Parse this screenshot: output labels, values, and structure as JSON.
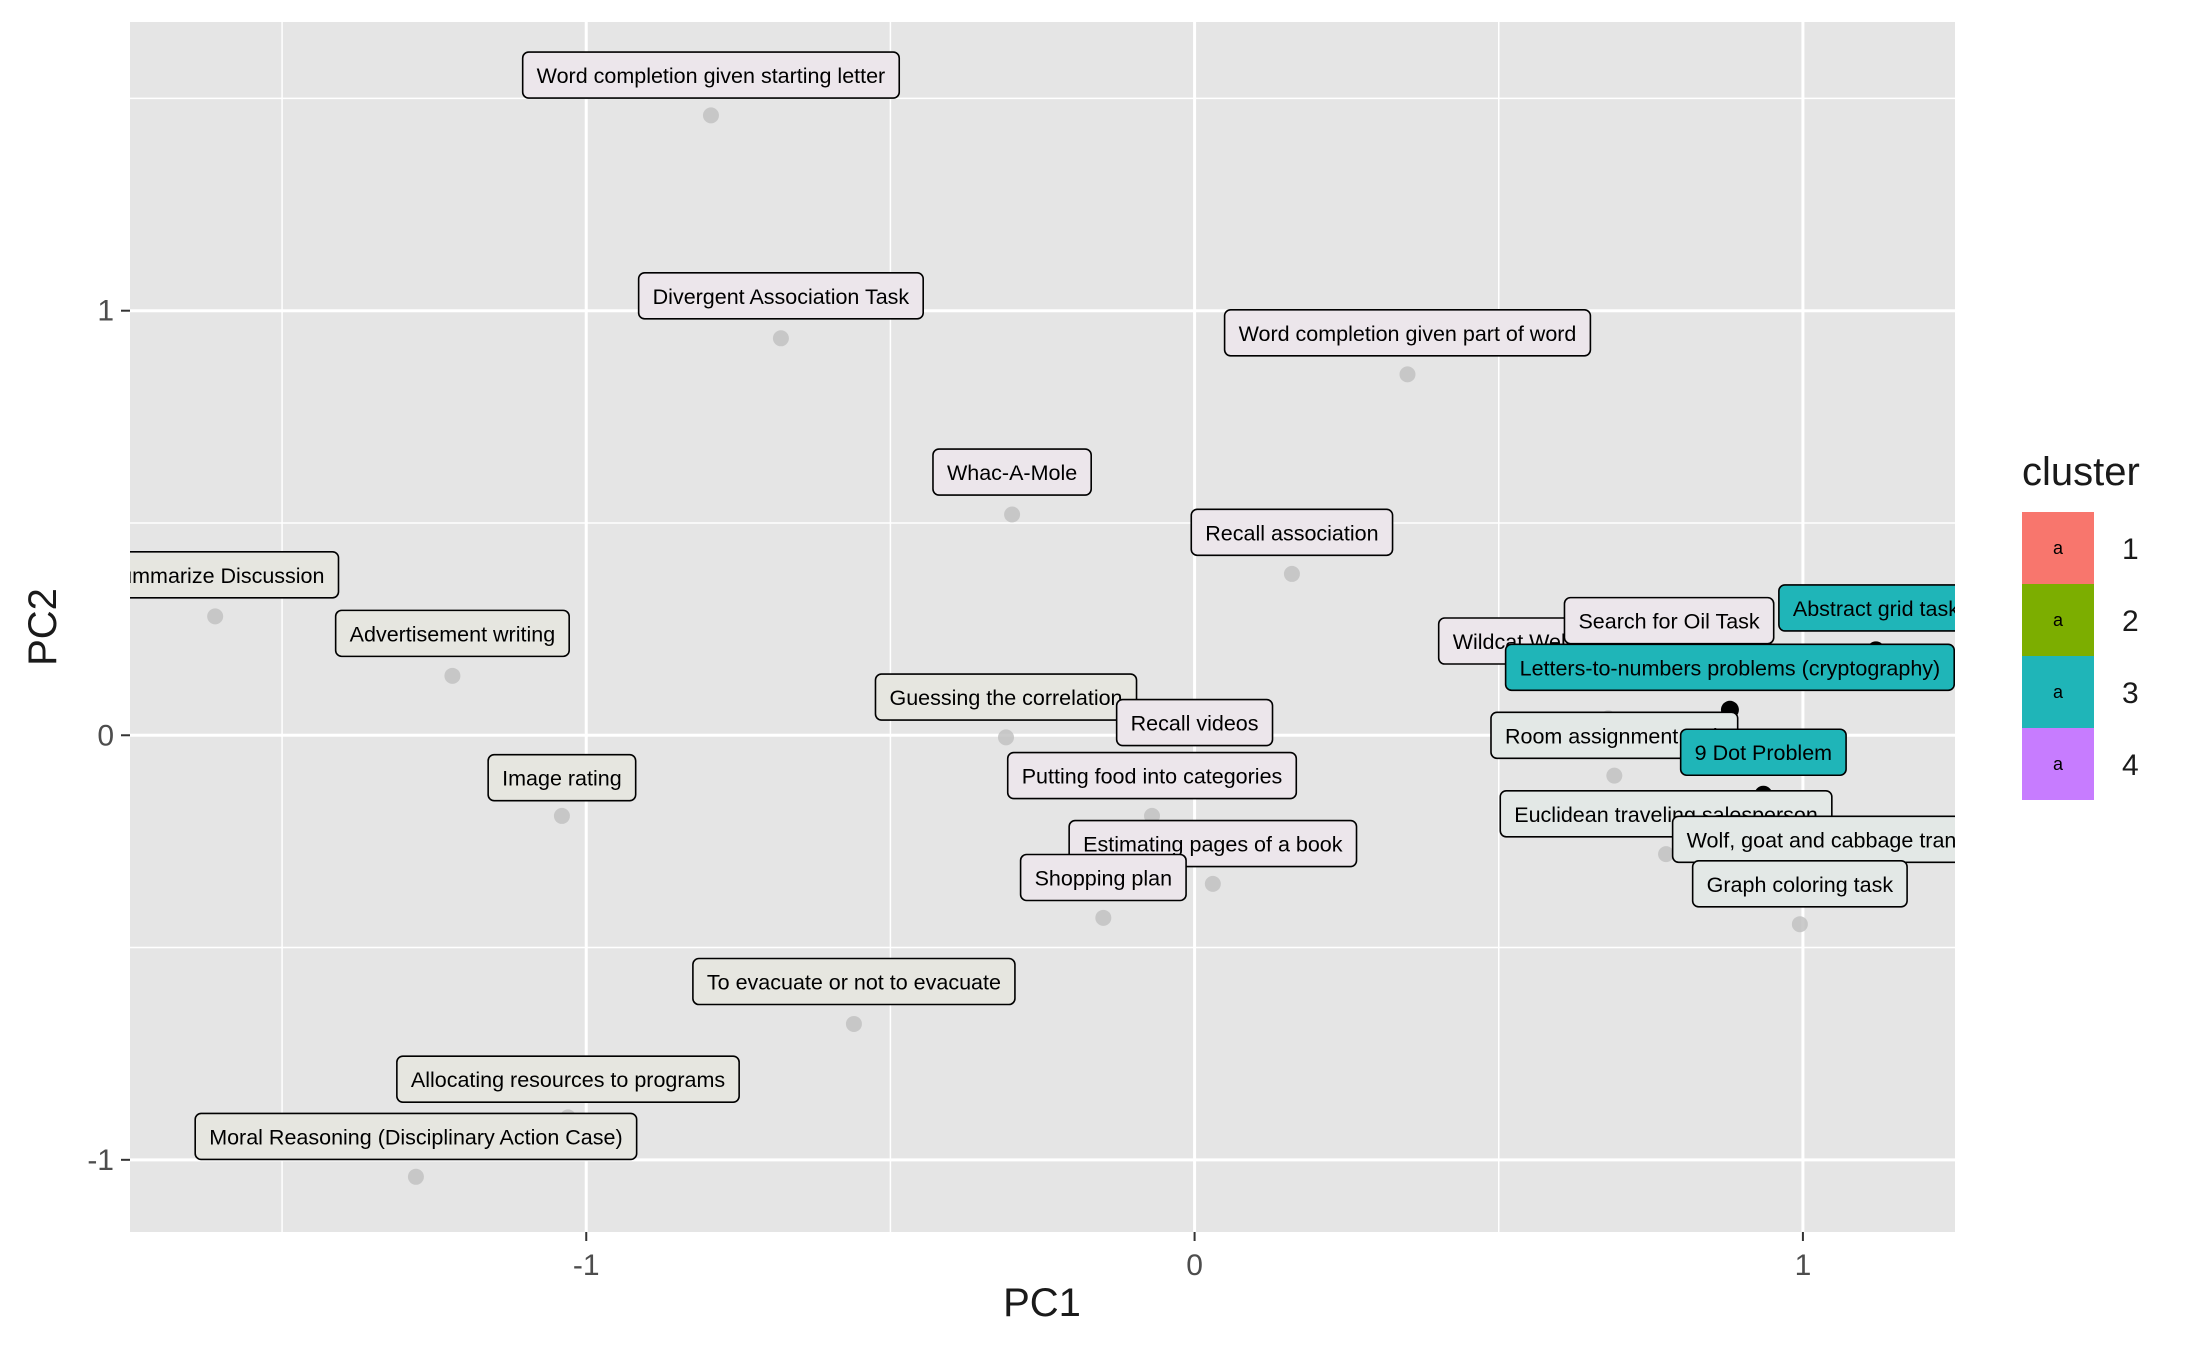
{
  "chart_data": {
    "type": "scatter",
    "title": "",
    "xlabel": "PC1",
    "ylabel": "PC2",
    "xlim": [
      -1.75,
      1.25
    ],
    "ylim": [
      -1.17,
      1.68
    ],
    "x_ticks": [
      -1,
      0,
      1
    ],
    "y_ticks": [
      -1,
      0,
      1
    ],
    "x_tick_labels": [
      "-1",
      "0",
      "1"
    ],
    "y_tick_labels": [
      "-1",
      "0",
      "1"
    ],
    "grid": true,
    "panel_background": "#e5e5e5",
    "legend": {
      "title": "cluster",
      "placement": "right",
      "key_glyph": "a",
      "entries": [
        {
          "label": "1",
          "color": "#f8766d"
        },
        {
          "label": "2",
          "color": "#7cae00"
        },
        {
          "label": "3",
          "color": "#1fb5b8"
        },
        {
          "label": "4",
          "color": "#c77cff"
        }
      ]
    },
    "points": [
      {
        "label": "Word completion given starting letter",
        "x": -0.795,
        "y": 1.46,
        "lx": -0.795,
        "ly": 1.555,
        "highlight": false,
        "fill": "#ece6eb"
      },
      {
        "label": "Divergent Association Task",
        "x": -0.68,
        "y": 0.935,
        "lx": -0.68,
        "ly": 1.035,
        "highlight": false,
        "fill": "#ece6eb"
      },
      {
        "label": "Word completion given part of word",
        "x": 0.35,
        "y": 0.85,
        "lx": 0.35,
        "ly": 0.948,
        "highlight": false,
        "fill": "#ece6eb"
      },
      {
        "label": "Whac-A-Mole",
        "x": -0.3,
        "y": 0.52,
        "lx": -0.3,
        "ly": 0.62,
        "highlight": false,
        "fill": "#ece6eb"
      },
      {
        "label": "Recall association",
        "x": 0.16,
        "y": 0.38,
        "lx": 0.16,
        "ly": 0.478,
        "highlight": false,
        "fill": "#ece6eb"
      },
      {
        "label": "Summarize Discussion",
        "x": -1.61,
        "y": 0.28,
        "lx": -1.61,
        "ly": 0.378,
        "highlight": false,
        "fill": "#e6e6e0"
      },
      {
        "label": "Advertisement writing",
        "x": -1.22,
        "y": 0.14,
        "lx": -1.22,
        "ly": 0.24,
        "highlight": false,
        "fill": "#e6e6e0"
      },
      {
        "label": "Guessing the correlation",
        "x": -0.31,
        "y": -0.005,
        "lx": -0.31,
        "ly": 0.09,
        "highlight": false,
        "fill": "#e6e6e0"
      },
      {
        "label": "Recall videos",
        "x": 0.0,
        "y": -0.065,
        "lx": 0.0,
        "ly": 0.03,
        "highlight": false,
        "fill": "#ece6eb"
      },
      {
        "label": "Image rating",
        "x": -1.04,
        "y": -0.19,
        "lx": -1.04,
        "ly": -0.1,
        "highlight": false,
        "fill": "#e6e6e0"
      },
      {
        "label": "Putting food into categories",
        "x": -0.07,
        "y": -0.19,
        "lx": -0.07,
        "ly": -0.095,
        "highlight": false,
        "fill": "#ece6eb"
      },
      {
        "label": "Estimating pages of a book",
        "x": 0.03,
        "y": -0.35,
        "lx": 0.03,
        "ly": -0.255,
        "highlight": false,
        "fill": "#ece6eb"
      },
      {
        "label": "Shopping plan",
        "x": -0.15,
        "y": -0.43,
        "lx": -0.15,
        "ly": -0.335,
        "highlight": false,
        "fill": "#ece6eb"
      },
      {
        "label": "To evacuate or not to evacuate",
        "x": -0.56,
        "y": -0.68,
        "lx": -0.56,
        "ly": -0.58,
        "highlight": false,
        "fill": "#e6e6e0"
      },
      {
        "label": "Allocating resources to programs",
        "x": -1.03,
        "y": -0.9,
        "lx": -1.03,
        "ly": -0.81,
        "highlight": false,
        "fill": "#e6e6e0"
      },
      {
        "label": "Moral Reasoning (Disciplinary Action Case)",
        "x": -1.28,
        "y": -1.04,
        "lx": -1.28,
        "ly": -0.945,
        "highlight": false,
        "fill": "#e6e6e0"
      },
      {
        "label": "Wildcat Wells",
        "x": 0.68,
        "y": 0.04,
        "lx": 0.53,
        "ly": 0.222,
        "highlight": false,
        "fill": "#ece6eb"
      },
      {
        "label": "Search for Oil Task",
        "x": 0.78,
        "y": 0.17,
        "lx": 0.78,
        "ly": 0.27,
        "highlight": false,
        "fill": "#ece6eb"
      },
      {
        "label": "Abstract grid task",
        "x": 1.12,
        "y": 0.2,
        "lx": 1.12,
        "ly": 0.3,
        "highlight": true,
        "fill": "#1fb5b8"
      },
      {
        "label": "Letters-to-numbers problems (cryptography)",
        "x": 0.88,
        "y": 0.06,
        "lx": 0.88,
        "ly": 0.16,
        "highlight": true,
        "fill": "#1fb5b8"
      },
      {
        "label": "Room assignment task",
        "x": 0.69,
        "y": -0.095,
        "lx": 0.69,
        "ly": 0.0,
        "highlight": false,
        "fill": "#e3e8e6"
      },
      {
        "label": "9 Dot Problem",
        "x": 0.935,
        "y": -0.14,
        "lx": 0.935,
        "ly": -0.04,
        "highlight": true,
        "fill": "#1fb5b8"
      },
      {
        "label": "Euclidean traveling salesperson",
        "x": 0.775,
        "y": -0.28,
        "lx": 0.775,
        "ly": -0.185,
        "highlight": false,
        "fill": "#e3e8e6"
      },
      {
        "label": "Wolf, goat and cabbage transfer",
        "x": 1.06,
        "y": -0.345,
        "lx": 1.06,
        "ly": -0.245,
        "highlight": false,
        "fill": "#e3e8e6"
      },
      {
        "label": "Graph coloring task",
        "x": 0.995,
        "y": -0.445,
        "lx": 0.995,
        "ly": -0.35,
        "highlight": false,
        "fill": "#e3e8e6"
      }
    ]
  }
}
